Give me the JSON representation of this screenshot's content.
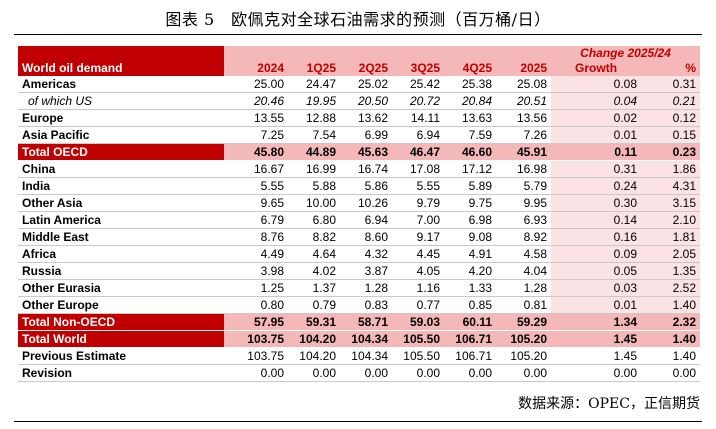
{
  "caption": "图表 5　欧佩克对全球石油需求的预测（百万桶/日）",
  "source": "数据来源：OPEC，正信期货",
  "header": {
    "change_label": "Change 2025/24",
    "row_label": "World oil demand",
    "columns": [
      "2024",
      "1Q25",
      "2Q25",
      "3Q25",
      "4Q25",
      "2025",
      "Growth",
      "%"
    ]
  },
  "rows": [
    {
      "label": "Americas",
      "values": [
        "25.00",
        "24.47",
        "25.02",
        "25.42",
        "25.38",
        "25.08",
        "0.08",
        "0.31"
      ]
    },
    {
      "label": "of which US",
      "values": [
        "20.46",
        "19.95",
        "20.50",
        "20.72",
        "20.84",
        "20.51",
        "0.04",
        "0.21"
      ]
    },
    {
      "label": "Europe",
      "values": [
        "13.55",
        "12.88",
        "13.62",
        "14.11",
        "13.63",
        "13.56",
        "0.02",
        "0.12"
      ]
    },
    {
      "label": "Asia Pacific",
      "values": [
        "7.25",
        "7.54",
        "6.99",
        "6.94",
        "7.59",
        "7.26",
        "0.01",
        "0.15"
      ]
    },
    {
      "label": "Total OECD",
      "values": [
        "45.80",
        "44.89",
        "45.63",
        "46.47",
        "46.60",
        "45.91",
        "0.11",
        "0.23"
      ]
    },
    {
      "label": "China",
      "values": [
        "16.67",
        "16.99",
        "16.74",
        "17.08",
        "17.12",
        "16.98",
        "0.31",
        "1.86"
      ]
    },
    {
      "label": "India",
      "values": [
        "5.55",
        "5.88",
        "5.86",
        "5.55",
        "5.89",
        "5.79",
        "0.24",
        "4.31"
      ]
    },
    {
      "label": "Other Asia",
      "values": [
        "9.65",
        "10.00",
        "10.26",
        "9.79",
        "9.75",
        "9.95",
        "0.30",
        "3.15"
      ]
    },
    {
      "label": "Latin America",
      "values": [
        "6.79",
        "6.80",
        "6.94",
        "7.00",
        "6.98",
        "6.93",
        "0.14",
        "2.10"
      ]
    },
    {
      "label": "Middle East",
      "values": [
        "8.76",
        "8.82",
        "8.60",
        "9.17",
        "9.08",
        "8.92",
        "0.16",
        "1.81"
      ]
    },
    {
      "label": "Africa",
      "values": [
        "4.49",
        "4.64",
        "4.32",
        "4.45",
        "4.91",
        "4.58",
        "0.09",
        "2.05"
      ]
    },
    {
      "label": "Russia",
      "values": [
        "3.98",
        "4.02",
        "3.87",
        "4.05",
        "4.20",
        "4.04",
        "0.05",
        "1.35"
      ]
    },
    {
      "label": "Other Eurasia",
      "values": [
        "1.25",
        "1.37",
        "1.28",
        "1.16",
        "1.33",
        "1.28",
        "0.03",
        "2.52"
      ]
    },
    {
      "label": "Other Europe",
      "values": [
        "0.80",
        "0.79",
        "0.83",
        "0.77",
        "0.85",
        "0.81",
        "0.01",
        "1.40"
      ]
    },
    {
      "label": "Total Non-OECD",
      "values": [
        "57.95",
        "59.31",
        "58.71",
        "59.03",
        "60.11",
        "59.29",
        "1.34",
        "2.32"
      ]
    },
    {
      "label": "Total World",
      "values": [
        "103.75",
        "104.20",
        "104.34",
        "105.50",
        "106.71",
        "105.20",
        "1.45",
        "1.40"
      ]
    },
    {
      "label": "Previous Estimate",
      "values": [
        "103.75",
        "104.20",
        "104.34",
        "105.50",
        "106.71",
        "105.20",
        "1.45",
        "1.40"
      ]
    },
    {
      "label": "Revision",
      "values": [
        "0.00",
        "0.00",
        "0.00",
        "0.00",
        "0.00",
        "0.00",
        "0.00",
        "0.00"
      ]
    }
  ]
}
